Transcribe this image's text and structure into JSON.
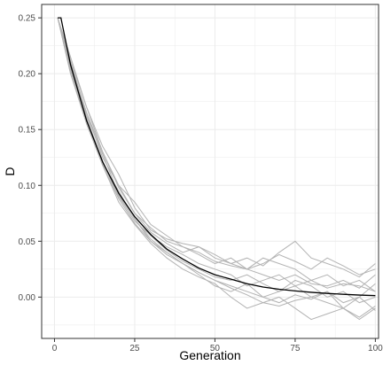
{
  "chart_data": {
    "type": "line",
    "title": "",
    "xlabel": "Generation",
    "ylabel": "D",
    "xlim": [
      -4,
      101
    ],
    "ylim": [
      -0.037,
      0.262
    ],
    "x_ticks": [
      0,
      25,
      50,
      75,
      100
    ],
    "x_tick_labels": [
      "0",
      "25",
      "50",
      "75",
      "100"
    ],
    "y_ticks": [
      0.0,
      0.05,
      0.1,
      0.15,
      0.2,
      0.25
    ],
    "y_tick_labels": [
      "0.00",
      "0.05",
      "0.10",
      "0.15",
      "0.20",
      "0.25"
    ],
    "grid": true,
    "legend": "none",
    "colors": {
      "theory": "#000000",
      "simulation": "#b3b3b3",
      "grid": "#ebebeb",
      "panel_border": "#333333"
    },
    "theory_curve": {
      "x": [
        1,
        2,
        5,
        10,
        15,
        20,
        25,
        30,
        35,
        40,
        45,
        50,
        55,
        60,
        65,
        70,
        75,
        80,
        85,
        90,
        95,
        100
      ],
      "y": [
        0.25,
        0.25,
        0.208,
        0.158,
        0.121,
        0.093,
        0.072,
        0.056,
        0.043,
        0.034,
        0.026,
        0.02,
        0.016,
        0.012,
        0.009,
        0.007,
        0.0055,
        0.0043,
        0.0033,
        0.0025,
        0.0018,
        0.0013
      ]
    },
    "series": [
      {
        "x": [
          1,
          5,
          10,
          15,
          20,
          25,
          30,
          35,
          40,
          45,
          50,
          55,
          60,
          65,
          70,
          75,
          80,
          85,
          90,
          95,
          100
        ],
        "y": [
          0.25,
          0.21,
          0.165,
          0.125,
          0.1,
          0.085,
          0.065,
          0.055,
          0.045,
          0.04,
          0.032,
          0.028,
          0.025,
          0.02,
          0.015,
          0.02,
          0.012,
          0.01,
          0.015,
          0.008,
          0.02
        ]
      },
      {
        "x": [
          1,
          5,
          10,
          15,
          20,
          25,
          30,
          35,
          40,
          45,
          50,
          55,
          60,
          65,
          70,
          75,
          80,
          85,
          90,
          95,
          100
        ],
        "y": [
          0.25,
          0.205,
          0.16,
          0.12,
          0.095,
          0.07,
          0.05,
          0.04,
          0.03,
          0.022,
          0.015,
          0.01,
          0.005,
          0.0,
          -0.005,
          0.002,
          -0.002,
          0.005,
          -0.005,
          0.0,
          -0.012
        ]
      },
      {
        "x": [
          1,
          5,
          10,
          15,
          20,
          25,
          30,
          35,
          40,
          45,
          50,
          55,
          60,
          65,
          70,
          75,
          80,
          85,
          90,
          95,
          100
        ],
        "y": [
          0.25,
          0.212,
          0.17,
          0.135,
          0.11,
          0.08,
          0.06,
          0.052,
          0.048,
          0.045,
          0.038,
          0.03,
          0.035,
          0.028,
          0.04,
          0.05,
          0.035,
          0.03,
          0.025,
          0.018,
          0.03
        ]
      },
      {
        "x": [
          1,
          5,
          10,
          15,
          20,
          25,
          30,
          35,
          40,
          45,
          50,
          55,
          60,
          65,
          70,
          75,
          80,
          85,
          90,
          95,
          100
        ],
        "y": [
          0.25,
          0.2,
          0.155,
          0.118,
          0.085,
          0.065,
          0.048,
          0.035,
          0.025,
          0.018,
          0.012,
          0.0,
          -0.01,
          -0.005,
          0.0,
          -0.01,
          -0.02,
          -0.015,
          -0.01,
          -0.02,
          -0.01
        ]
      },
      {
        "x": [
          1,
          5,
          10,
          15,
          20,
          25,
          30,
          35,
          40,
          45,
          50,
          55,
          60,
          65,
          70,
          75,
          80,
          85,
          90,
          95,
          100
        ],
        "y": [
          0.25,
          0.215,
          0.17,
          0.13,
          0.1,
          0.075,
          0.062,
          0.05,
          0.045,
          0.038,
          0.03,
          0.035,
          0.025,
          0.035,
          0.03,
          0.025,
          0.015,
          0.02,
          0.01,
          0.015,
          0.005
        ]
      },
      {
        "x": [
          1,
          5,
          10,
          15,
          20,
          25,
          30,
          35,
          40,
          45,
          50,
          55,
          60,
          65,
          70,
          75,
          80,
          85,
          90,
          95,
          100
        ],
        "y": [
          0.25,
          0.208,
          0.162,
          0.128,
          0.092,
          0.07,
          0.052,
          0.04,
          0.03,
          0.02,
          0.01,
          0.005,
          0.012,
          0.0,
          0.005,
          0.015,
          0.01,
          0.0,
          0.005,
          -0.005,
          0.0
        ]
      },
      {
        "x": [
          1,
          5,
          10,
          15,
          20,
          25,
          30,
          35,
          40,
          45,
          50,
          55,
          60,
          65,
          70,
          75,
          80,
          85,
          90,
          95,
          100
        ],
        "y": [
          0.25,
          0.2,
          0.158,
          0.12,
          0.09,
          0.068,
          0.055,
          0.045,
          0.038,
          0.03,
          0.025,
          0.02,
          0.01,
          0.015,
          0.02,
          0.01,
          0.0,
          -0.005,
          -0.01,
          0.0,
          0.012
        ]
      },
      {
        "x": [
          1,
          5,
          10,
          15,
          20,
          25,
          30,
          35,
          40,
          45,
          50,
          55,
          60,
          65,
          70,
          75,
          80,
          85,
          90,
          95,
          100
        ],
        "y": [
          0.25,
          0.206,
          0.165,
          0.13,
          0.098,
          0.075,
          0.058,
          0.048,
          0.04,
          0.045,
          0.035,
          0.03,
          0.025,
          0.03,
          0.038,
          0.032,
          0.025,
          0.035,
          0.028,
          0.02,
          0.025
        ]
      },
      {
        "x": [
          1,
          5,
          10,
          15,
          20,
          25,
          30,
          35,
          40,
          45,
          50,
          55,
          60,
          65,
          70,
          75,
          80,
          85,
          90,
          95,
          100
        ],
        "y": [
          0.25,
          0.21,
          0.16,
          0.122,
          0.09,
          0.072,
          0.055,
          0.042,
          0.032,
          0.025,
          0.018,
          0.015,
          0.02,
          0.012,
          0.005,
          0.01,
          0.015,
          0.008,
          0.012,
          0.01,
          0.005
        ]
      },
      {
        "x": [
          1,
          5,
          10,
          15,
          20,
          25,
          30,
          35,
          40,
          45,
          50,
          55,
          60,
          65,
          70,
          75,
          80,
          85,
          90,
          95,
          100
        ],
        "y": [
          0.25,
          0.203,
          0.158,
          0.118,
          0.088,
          0.066,
          0.05,
          0.038,
          0.03,
          0.022,
          0.015,
          0.008,
          0.002,
          -0.005,
          -0.008,
          -0.003,
          0.0,
          0.005,
          -0.01,
          -0.018,
          -0.008
        ]
      }
    ]
  }
}
